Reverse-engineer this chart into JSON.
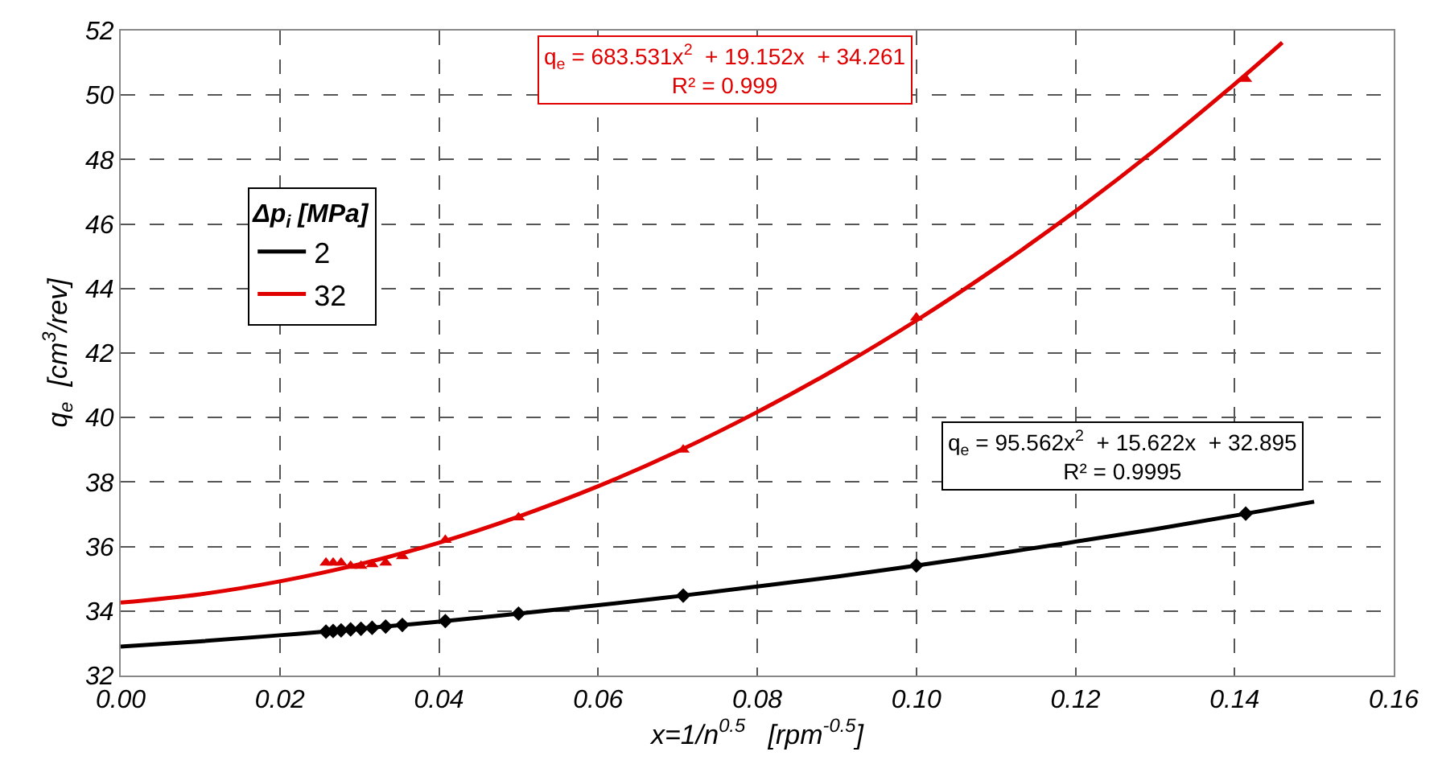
{
  "chart_data": {
    "type": "scatter",
    "xlabel": "x=1/n$^{0.5}$   [rpm$^{-0.5}$]",
    "ylabel": "q$_{e}$  [cm$^{3}$/rev]",
    "legend_title": "Δp$_{i}$ [MPa]",
    "legend": "left",
    "grid": true,
    "xlim": [
      0,
      0.16
    ],
    "xticks": [
      {
        "value": 0,
        "label": "0.00"
      },
      0.02,
      0.04,
      0.06,
      0.08,
      {
        "value": 0.1,
        "label": "0.10"
      },
      0.12,
      0.14,
      0.16
    ],
    "ylim": [
      32,
      52
    ],
    "yticks": [
      32,
      34,
      36,
      38,
      40,
      42,
      44,
      46,
      48,
      50,
      52
    ],
    "annotations": [
      "q$_{e}$ = 683.531x$^{2}$  + 19.152x  + 34.261\nR² = 0.999",
      "q$_{e}$ = 95.562x$^{2}$  + 15.622x  + 32.895\nR² = 0.9995"
    ],
    "series": [
      {
        "name": "2",
        "type": "line",
        "marker": "none",
        "line_style": "solid",
        "color": "#000000",
        "x": [
          0,
          0.01,
          0.02,
          0.03,
          0.04,
          0.05,
          0.06,
          0.07,
          0.08,
          0.09,
          0.1,
          0.11,
          0.12,
          0.13,
          0.14,
          0.15
        ],
        "values": [
          32.9,
          33.06,
          33.25,
          33.45,
          33.67,
          33.92,
          34.18,
          34.46,
          34.76,
          35.07,
          35.41,
          35.77,
          36.15,
          36.54,
          36.96,
          37.39
        ]
      },
      {
        "name": "32",
        "type": "line",
        "marker": "none",
        "line_style": "solid",
        "color": "#e00000",
        "x": [
          0,
          0.01,
          0.02,
          0.03,
          0.04,
          0.05,
          0.06,
          0.07,
          0.08,
          0.09,
          0.1,
          0.11,
          0.12,
          0.13,
          0.14,
          0.146
        ],
        "values": [
          34.26,
          34.52,
          34.92,
          35.45,
          36.12,
          36.93,
          37.87,
          38.95,
          40.17,
          41.52,
          43.01,
          44.64,
          46.4,
          48.3,
          50.34,
          51.63
        ]
      },
      {
        "marker": "diamond",
        "color": "#000000",
        "x": [
          0.0258,
          0.0267,
          0.0277,
          0.0289,
          0.0302,
          0.0316,
          0.0333,
          0.0354,
          0.0408,
          0.05,
          0.0707,
          0.1,
          0.1414
        ],
        "values": [
          33.36,
          33.38,
          33.4,
          33.43,
          33.45,
          33.48,
          33.52,
          33.57,
          33.69,
          33.92,
          34.48,
          35.41,
          37.02
        ]
      },
      {
        "marker": "triangle",
        "color": "#e00000",
        "x": [
          0.0258,
          0.0267,
          0.0277,
          0.0289,
          0.0302,
          0.0316,
          0.0333,
          0.0354,
          0.0408,
          0.05,
          0.0707,
          0.1,
          0.1414
        ],
        "values": [
          35.5,
          35.5,
          35.5,
          35.4,
          35.4,
          35.45,
          35.5,
          35.7,
          36.2,
          36.9,
          39.0,
          43.1,
          50.5
        ]
      }
    ]
  }
}
